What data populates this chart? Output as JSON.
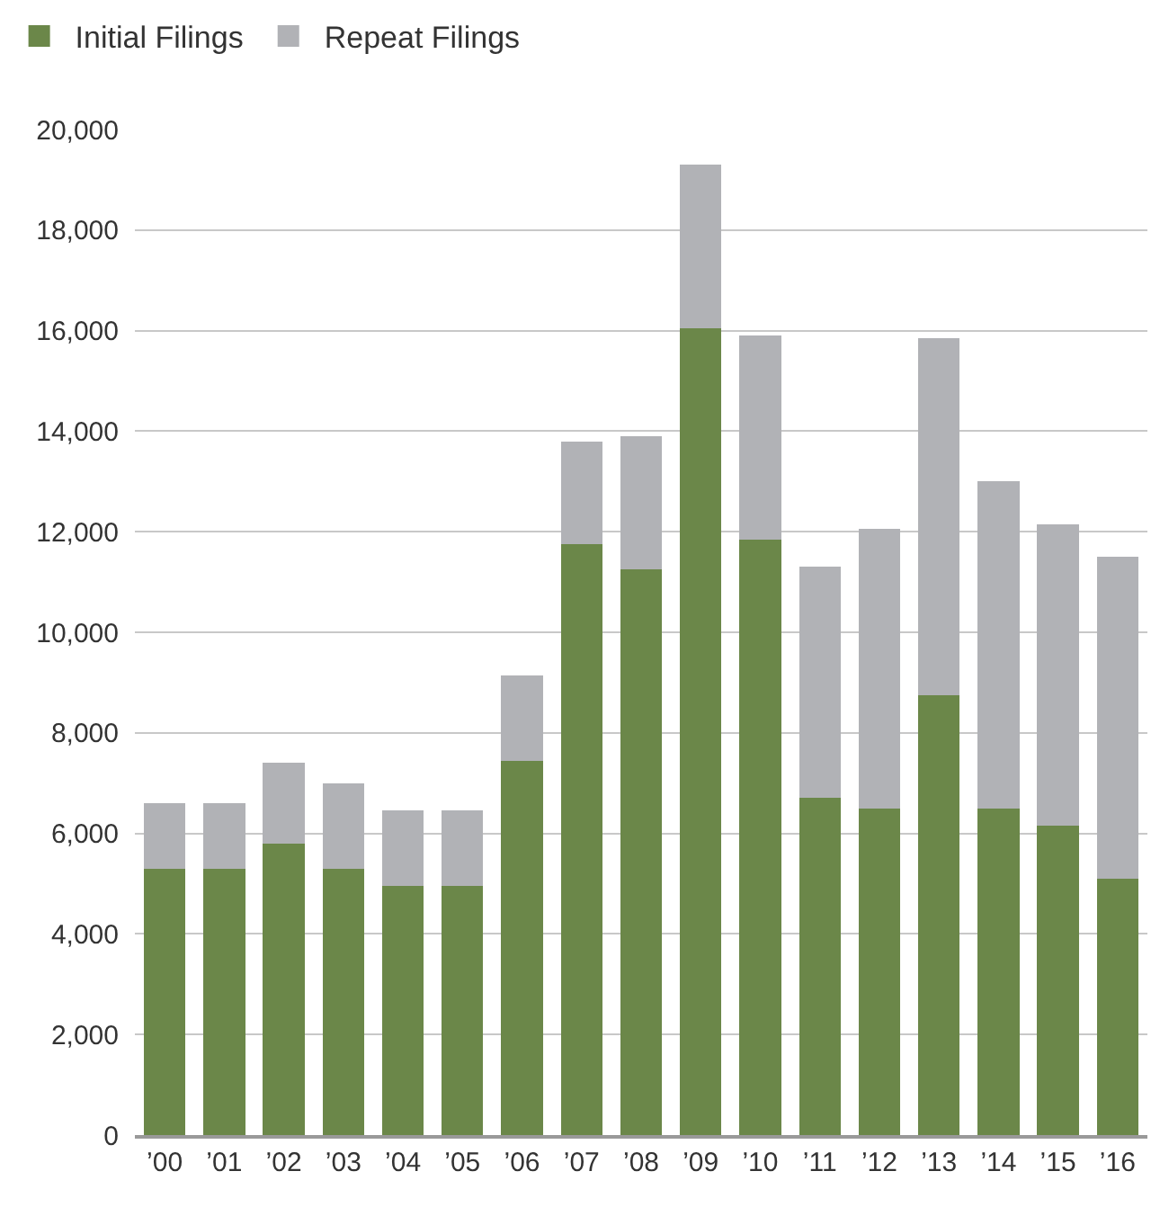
{
  "chart_data": {
    "type": "bar",
    "stacked": true,
    "categories": [
      "’00",
      "’01",
      "’02",
      "’03",
      "’04",
      "’05",
      "’06",
      "’07",
      "’08",
      "’09",
      "’10",
      "’11",
      "’12",
      "’13",
      "’14",
      "’15",
      "’16"
    ],
    "series": [
      {
        "name": "Initial Filings",
        "color": "#6b8749",
        "values": [
          5300,
          5300,
          5800,
          5300,
          4950,
          4950,
          7450,
          11750,
          11250,
          16050,
          11850,
          6700,
          6500,
          8750,
          6500,
          6150,
          5100
        ]
      },
      {
        "name": "Repeat Filings",
        "color": "#b1b2b6",
        "values": [
          1300,
          1300,
          1600,
          1700,
          1500,
          1500,
          1700,
          2050,
          2650,
          3250,
          4050,
          4600,
          5550,
          7100,
          6500,
          6000,
          6400
        ]
      }
    ],
    "ylim": [
      0,
      20000
    ],
    "yticks": [
      {
        "value": 0,
        "label": "0"
      },
      {
        "value": 2000,
        "label": "2,000"
      },
      {
        "value": 4000,
        "label": "4,000"
      },
      {
        "value": 6000,
        "label": "6,000"
      },
      {
        "value": 8000,
        "label": "8,000"
      },
      {
        "value": 10000,
        "label": "10,000"
      },
      {
        "value": 12000,
        "label": "12,000"
      },
      {
        "value": 14000,
        "label": "14,000"
      },
      {
        "value": 16000,
        "label": "16,000"
      },
      {
        "value": 18000,
        "label": "18,000"
      },
      {
        "value": 20000,
        "label": "20,000"
      }
    ],
    "grid": "y",
    "legend": "top left"
  }
}
